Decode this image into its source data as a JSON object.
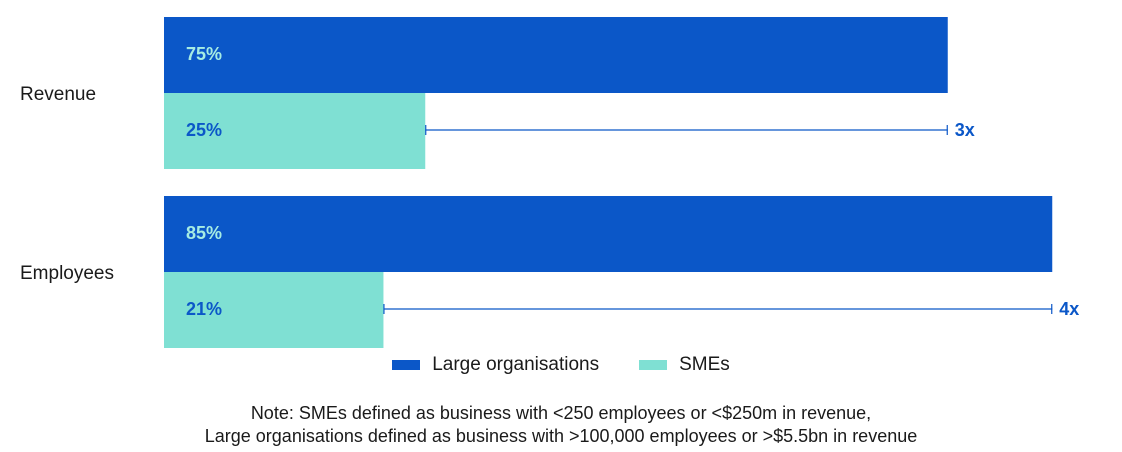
{
  "colors": {
    "large": "#0b57c8",
    "sme": "#7fe0d3",
    "label_on_large": "#a6ece3",
    "label_on_sme": "#0b57c8",
    "bracket": "#0b57c8"
  },
  "chart_data": {
    "type": "bar",
    "orientation": "horizontal",
    "categories": [
      "Revenue",
      "Employees"
    ],
    "series": [
      {
        "name": "Large organisations",
        "values": [
          75,
          85
        ],
        "labels": [
          "75%",
          "85%"
        ]
      },
      {
        "name": "SMEs",
        "values": [
          25,
          21
        ],
        "labels": [
          "25%",
          "21%"
        ]
      }
    ],
    "multipliers": [
      "3x",
      "4x"
    ],
    "xlim": [
      0,
      100
    ],
    "grid": false,
    "legend_position": "bottom-center"
  },
  "legend": {
    "large_label": "Large organisations",
    "sme_label": "SMEs"
  },
  "note": {
    "line1": "Note: SMEs defined as business with <250 employees or <$250m in revenue,",
    "line2": "Large organisations defined as business with >100,000 employees or >$5.5bn in revenue"
  }
}
